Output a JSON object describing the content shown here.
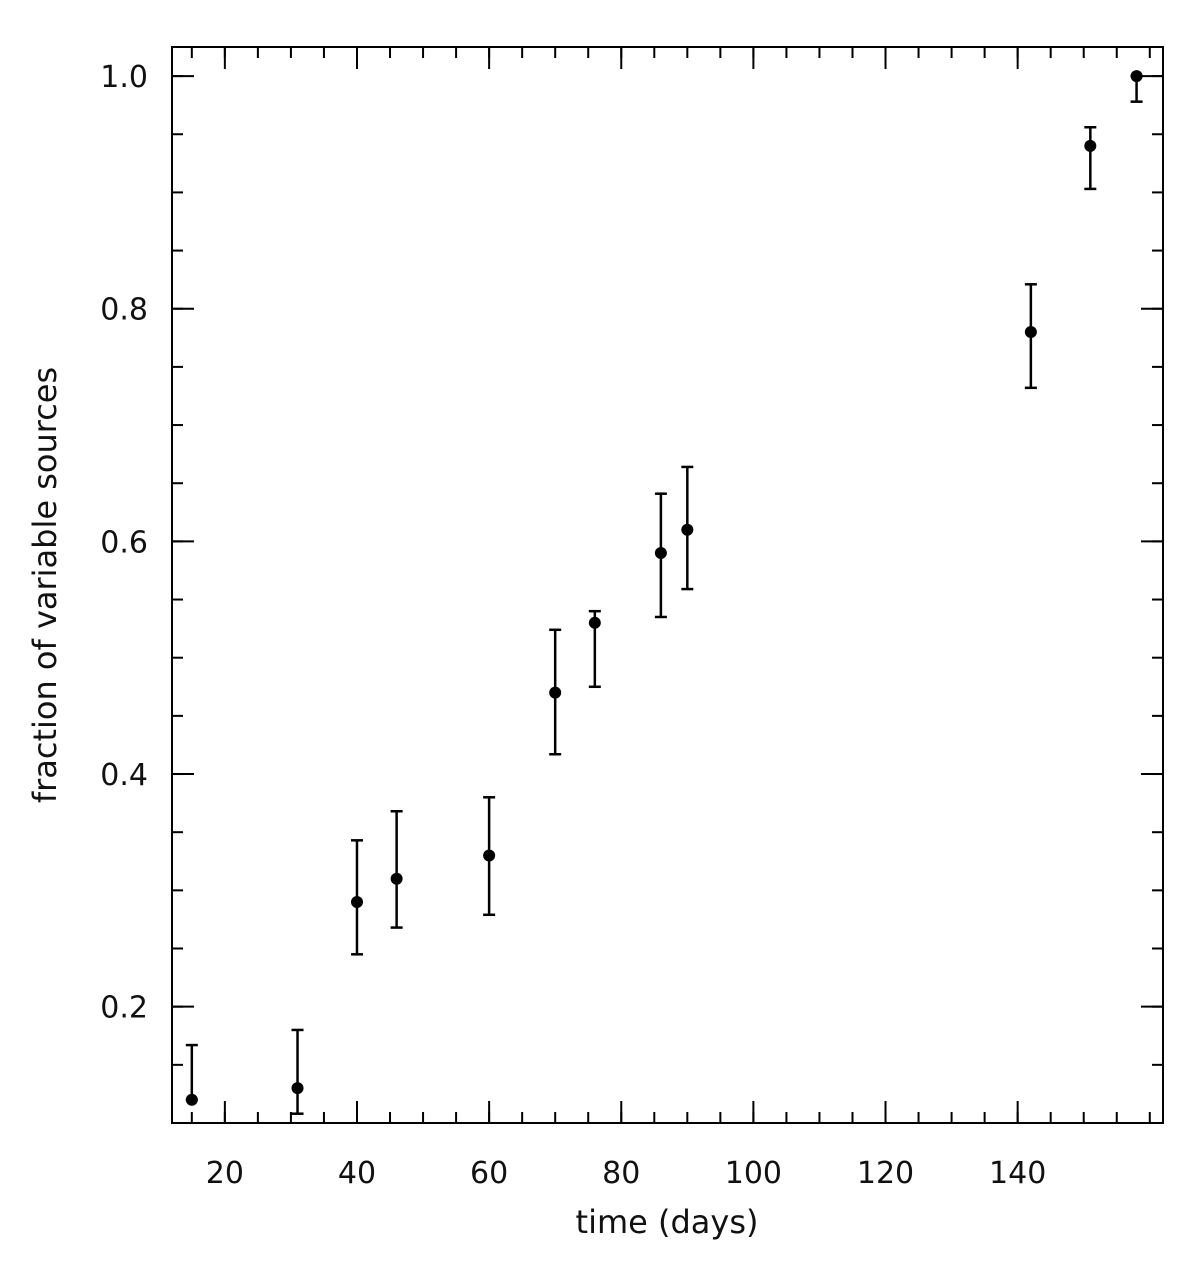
{
  "chart_data": {
    "type": "scatter",
    "xlabel": "time (days)",
    "ylabel": "fraction of variable sources",
    "xlim": [
      12,
      162
    ],
    "ylim": [
      0.1,
      1.025
    ],
    "x_ticks": [
      20,
      40,
      60,
      80,
      100,
      120,
      140
    ],
    "x_tick_labels": [
      "20",
      "40",
      "60",
      "80",
      "100",
      "120",
      "140"
    ],
    "x_minor_step": 5,
    "y_ticks": [
      0.2,
      0.4,
      0.6,
      0.8,
      1.0
    ],
    "y_tick_labels": [
      "0.2",
      "0.4",
      "0.6",
      "0.8",
      "1.0"
    ],
    "y_minor_step": 0.05,
    "grid": false,
    "marker_color": "#000000",
    "points": [
      {
        "x": 15,
        "y": 0.12,
        "ylow": 0.12,
        "yhigh": 0.167
      },
      {
        "x": 31,
        "y": 0.13,
        "ylow": 0.108,
        "yhigh": 0.18
      },
      {
        "x": 40,
        "y": 0.29,
        "ylow": 0.245,
        "yhigh": 0.343
      },
      {
        "x": 46,
        "y": 0.31,
        "ylow": 0.268,
        "yhigh": 0.368
      },
      {
        "x": 60,
        "y": 0.33,
        "ylow": 0.279,
        "yhigh": 0.38
      },
      {
        "x": 70,
        "y": 0.47,
        "ylow": 0.417,
        "yhigh": 0.524
      },
      {
        "x": 76,
        "y": 0.53,
        "ylow": 0.475,
        "yhigh": 0.54
      },
      {
        "x": 86,
        "y": 0.59,
        "ylow": 0.535,
        "yhigh": 0.641
      },
      {
        "x": 90,
        "y": 0.61,
        "ylow": 0.559,
        "yhigh": 0.664
      },
      {
        "x": 142,
        "y": 0.78,
        "ylow": 0.732,
        "yhigh": 0.821
      },
      {
        "x": 151,
        "y": 0.94,
        "ylow": 0.903,
        "yhigh": 0.956
      },
      {
        "x": 158,
        "y": 1.0,
        "ylow": 0.978,
        "yhigh": 1.0
      }
    ]
  }
}
